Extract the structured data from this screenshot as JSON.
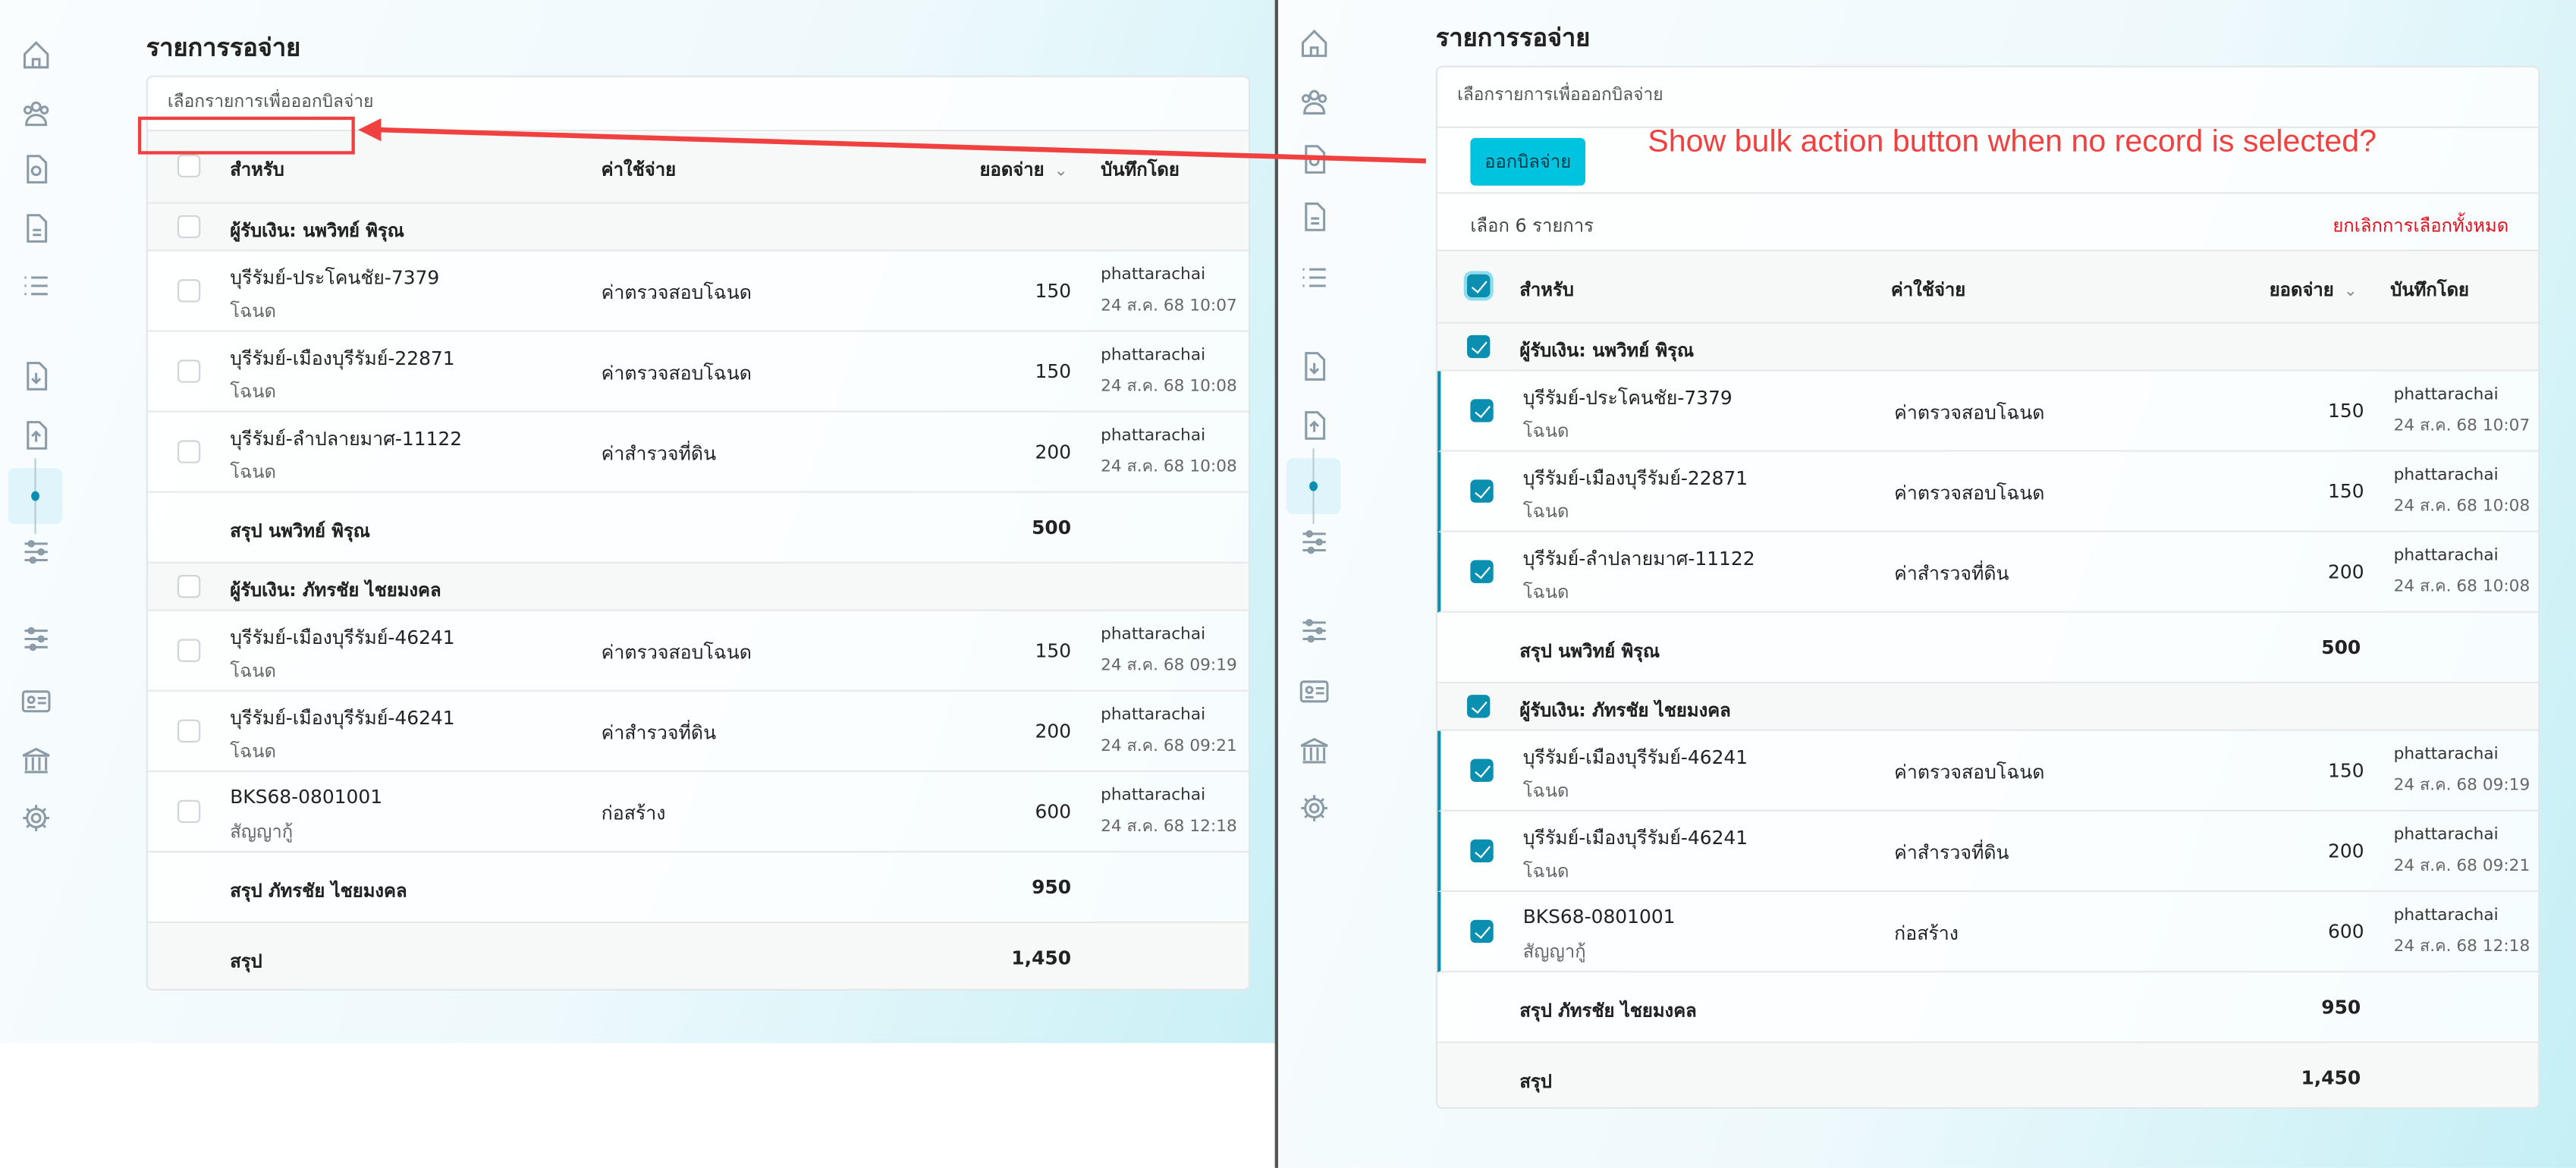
{
  "page_title": "รายการรอจ่าย",
  "card_title": "เลือกรายการเพื่อออกบิลจ่าย",
  "columns": {
    "for": "สำหรับ",
    "expense": "ค่าใช้จ่าย",
    "amount": "ยอดจ่าย",
    "recorded_by": "บันทึกโดย"
  },
  "sort_icon": "chevron-down-icon",
  "bulk_action": {
    "button_label": "ออกบิลจ่าย",
    "selected_text": "เลือก 6 รายการ",
    "clear_label": "ยกเลิกการเลือกทั้งหมด",
    "button_color": "#00c3e0",
    "clear_color": "#e0101c"
  },
  "annotation": {
    "text": "Show bulk action button when no record is selected?",
    "color": "#f04040"
  },
  "sidebar_icons": [
    "home-icon",
    "users-icon",
    "document-search-icon",
    "document-icon",
    "list-icon",
    "document-download-icon",
    "document-upload-icon",
    "active-dot",
    "sliders-icon",
    "sliders-icon",
    "id-card-icon",
    "bank-icon",
    "gear-icon"
  ],
  "groups": [
    {
      "label": "ผู้รับเงิน: นพวิทย์ พิรุณ",
      "items": [
        {
          "name": "บุรีรัมย์-ประโคนชัย-7379",
          "type": "โฉนด",
          "expense": "ค่าตรวจสอบโฉนด",
          "amount": "150",
          "user": "phattarachai",
          "time": "24 ส.ค. 68 10:07"
        },
        {
          "name": "บุรีรัมย์-เมืองบุรีรัมย์-22871",
          "type": "โฉนด",
          "expense": "ค่าตรวจสอบโฉนด",
          "amount": "150",
          "user": "phattarachai",
          "time": "24 ส.ค. 68 10:08"
        },
        {
          "name": "บุรีรัมย์-ลำปลายมาศ-11122",
          "type": "โฉนด",
          "expense": "ค่าสำรวจที่ดิน",
          "amount": "200",
          "user": "phattarachai",
          "time": "24 ส.ค. 68 10:08"
        }
      ],
      "summary_label": "สรุป นพวิทย์ พิรุณ",
      "summary_amount": "500"
    },
    {
      "label": "ผู้รับเงิน: ภัทรชัย ไชยมงคล",
      "items": [
        {
          "name": "บุรีรัมย์-เมืองบุรีรัมย์-46241",
          "type": "โฉนด",
          "expense": "ค่าตรวจสอบโฉนด",
          "amount": "150",
          "user": "phattarachai",
          "time": "24 ส.ค. 68 09:19"
        },
        {
          "name": "บุรีรัมย์-เมืองบุรีรัมย์-46241",
          "type": "โฉนด",
          "expense": "ค่าสำรวจที่ดิน",
          "amount": "200",
          "user": "phattarachai",
          "time": "24 ส.ค. 68 09:21"
        },
        {
          "name": "BKS68-0801001",
          "type": "สัญญากู้",
          "expense": "ก่อสร้าง",
          "amount": "600",
          "user": "phattarachai",
          "time": "24 ส.ค. 68 12:18"
        }
      ],
      "summary_label": "สรุป ภัทรชัย ไชยมงคล",
      "summary_amount": "950"
    }
  ],
  "total_label": "สรุป",
  "total_amount": "1,450",
  "left_state": {
    "selected": false
  },
  "right_state": {
    "selected": true
  }
}
